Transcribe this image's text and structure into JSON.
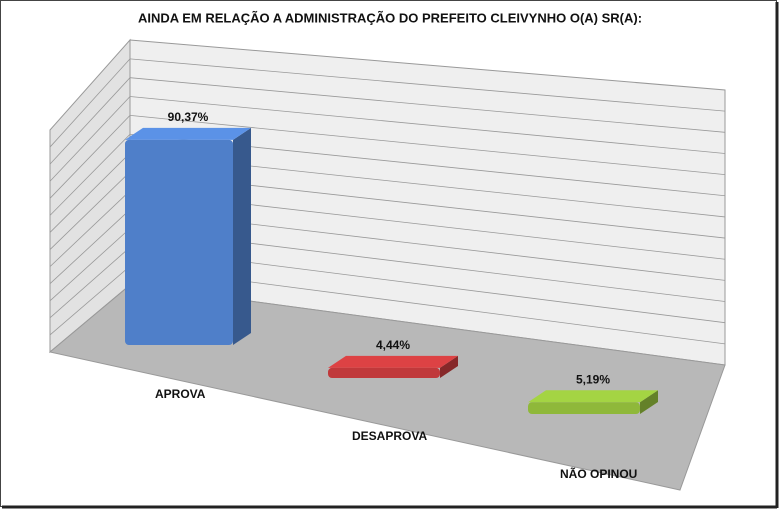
{
  "chart_data": {
    "type": "bar3d",
    "title": "AINDA EM RELAÇÃO A ADMINISTRAÇÃO DO PREFEITO CLEIVYNHO O(A) SR(A):",
    "categories": [
      "APROVA",
      "DESAPROVA",
      "NÃO OPINOU"
    ],
    "series": [
      {
        "colors": [
          "#4f7fc9",
          "#c0393b",
          "#8fb83a"
        ],
        "values": [
          90.37,
          4.44,
          5.19
        ],
        "value_labels": [
          "90,37%",
          "4,44%",
          "5,19%"
        ]
      }
    ],
    "ylim": [
      0,
      100
    ]
  }
}
